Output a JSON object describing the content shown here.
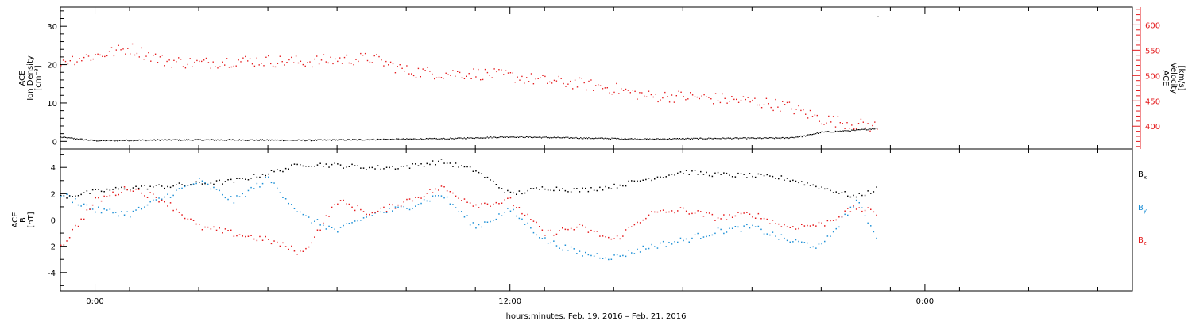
{
  "x_axis_label": "hours:minutes, Feb. 19, 2016 – Feb. 21, 2016",
  "colors": {
    "black": "#000000",
    "red": "#e41a1c",
    "blue": "#1c8fd6"
  },
  "chart_data": [
    {
      "type": "scatter",
      "panel": "top",
      "title": "",
      "xlabel": "hours:minutes, Feb. 19, 2016 – Feb. 21, 2016",
      "xlim": [
        "2016-02-19T23:00",
        "2016-02-21T06:00"
      ],
      "x_ticks": [
        {
          "x": "2016-02-20T00:00",
          "label": "0:00"
        },
        {
          "x": "2016-02-20T12:00",
          "label": "12:00"
        },
        {
          "x": "2016-02-21T00:00",
          "label": "0:00"
        }
      ],
      "left_axis": {
        "label_lines": [
          "ACE",
          "Ion Density",
          "[cm⁻³]"
        ],
        "ylim": [
          -2,
          35
        ],
        "ticks": [
          0,
          10,
          20,
          30
        ]
      },
      "right_axis": {
        "label_lines": [
          "ACE",
          "Velocity",
          "[km/s]"
        ],
        "ylim": [
          355,
          635
        ],
        "ticks": [
          400,
          450,
          500,
          550,
          600
        ]
      },
      "grid": false,
      "series": [
        {
          "name": "",
          "axis": "left",
          "color": "#000000",
          "x": [
            "2016-02-19T23:00",
            "2016-02-20T00:00",
            "2016-02-20T02:00",
            "2016-02-20T04:00",
            "2016-02-20T06:00",
            "2016-02-20T08:00",
            "2016-02-20T10:00",
            "2016-02-20T12:00",
            "2016-02-20T14:00",
            "2016-02-20T16:00",
            "2016-02-20T18:00",
            "2016-02-20T20:00",
            "2016-02-20T20:30",
            "2016-02-20T21:00",
            "2016-02-20T22:00",
            "2016-02-20T22:36",
            "2016-02-20T22:38"
          ],
          "values": [
            1.2,
            0.3,
            0.5,
            0.5,
            0.4,
            0.6,
            0.8,
            1.3,
            1.0,
            0.7,
            0.9,
            1.0,
            1.5,
            2.5,
            3.0,
            3.5,
            32.5
          ]
        },
        {
          "name": "",
          "axis": "right",
          "color": "#e41a1c",
          "x": [
            "2016-02-19T23:00",
            "2016-02-20T00:00",
            "2016-02-20T01:00",
            "2016-02-20T02:00",
            "2016-02-20T03:00",
            "2016-02-20T04:00",
            "2016-02-20T05:00",
            "2016-02-20T06:00",
            "2016-02-20T07:00",
            "2016-02-20T08:00",
            "2016-02-20T09:00",
            "2016-02-20T10:00",
            "2016-02-20T11:00",
            "2016-02-20T12:00",
            "2016-02-20T13:00",
            "2016-02-20T14:00",
            "2016-02-20T15:00",
            "2016-02-20T16:00",
            "2016-02-20T17:00",
            "2016-02-20T18:00",
            "2016-02-20T19:00",
            "2016-02-20T20:00",
            "2016-02-20T21:00",
            "2016-02-20T22:00",
            "2016-02-20T22:36"
          ],
          "values": [
            530,
            540,
            555,
            530,
            525,
            530,
            530,
            528,
            532,
            535,
            510,
            505,
            505,
            500,
            490,
            485,
            475,
            460,
            460,
            455,
            450,
            440,
            415,
            405,
            400
          ]
        }
      ]
    },
    {
      "type": "scatter",
      "panel": "bottom",
      "title": "",
      "xlabel": "hours:minutes, Feb. 19, 2016 – Feb. 21, 2016",
      "xlim": [
        "2016-02-19T23:00",
        "2016-02-21T06:00"
      ],
      "y_axis": {
        "label_lines": [
          "ACE",
          "B",
          "[nT]"
        ],
        "ylim": [
          -5.4,
          5.4
        ],
        "ticks": [
          -4,
          -2,
          0,
          2,
          4
        ]
      },
      "zero_line": true,
      "grid": false,
      "legend_position": "right",
      "series": [
        {
          "name": "B",
          "sub": "x",
          "color": "#000000",
          "x": [
            "2016-02-19T23:00",
            "2016-02-20T00:00",
            "2016-02-20T01:00",
            "2016-02-20T02:00",
            "2016-02-20T03:00",
            "2016-02-20T04:00",
            "2016-02-20T05:00",
            "2016-02-20T06:00",
            "2016-02-20T07:00",
            "2016-02-20T08:00",
            "2016-02-20T09:00",
            "2016-02-20T10:00",
            "2016-02-20T11:00",
            "2016-02-20T12:00",
            "2016-02-20T13:00",
            "2016-02-20T14:00",
            "2016-02-20T15:00",
            "2016-02-20T16:00",
            "2016-02-20T17:00",
            "2016-02-20T18:00",
            "2016-02-20T19:00",
            "2016-02-20T20:00",
            "2016-02-20T21:00",
            "2016-02-20T22:00",
            "2016-02-20T22:36"
          ],
          "values": [
            1.8,
            2.2,
            2.5,
            2.6,
            2.8,
            3.0,
            3.6,
            4.3,
            4.2,
            4.0,
            4.1,
            4.5,
            3.8,
            2.0,
            2.5,
            2.3,
            2.6,
            3.2,
            3.7,
            3.5,
            3.4,
            3.2,
            2.5,
            1.8,
            2.4
          ]
        },
        {
          "name": "B",
          "sub": "y",
          "color": "#1c8fd6",
          "x": [
            "2016-02-19T23:00",
            "2016-02-20T00:00",
            "2016-02-20T01:00",
            "2016-02-20T02:00",
            "2016-02-20T03:00",
            "2016-02-20T04:00",
            "2016-02-20T05:00",
            "2016-02-20T06:00",
            "2016-02-20T07:00",
            "2016-02-20T08:00",
            "2016-02-20T09:00",
            "2016-02-20T10:00",
            "2016-02-20T11:00",
            "2016-02-20T12:00",
            "2016-02-20T13:00",
            "2016-02-20T14:00",
            "2016-02-20T15:00",
            "2016-02-20T16:00",
            "2016-02-20T17:00",
            "2016-02-20T18:00",
            "2016-02-20T19:00",
            "2016-02-20T20:00",
            "2016-02-20T21:00",
            "2016-02-20T22:00",
            "2016-02-20T22:36"
          ],
          "values": [
            2.0,
            0.8,
            0.5,
            1.8,
            3.0,
            1.5,
            3.2,
            0.3,
            -0.8,
            0.5,
            1.0,
            2.0,
            -0.5,
            0.8,
            -1.5,
            -2.5,
            -2.8,
            -2.0,
            -1.5,
            -0.8,
            -0.5,
            -1.5,
            -2.0,
            1.5,
            -1.2
          ]
        },
        {
          "name": "B",
          "sub": "z",
          "color": "#e41a1c",
          "x": [
            "2016-02-19T23:00",
            "2016-02-20T00:00",
            "2016-02-20T01:00",
            "2016-02-20T02:00",
            "2016-02-20T03:00",
            "2016-02-20T04:00",
            "2016-02-20T05:00",
            "2016-02-20T06:00",
            "2016-02-20T07:00",
            "2016-02-20T08:00",
            "2016-02-20T09:00",
            "2016-02-20T10:00",
            "2016-02-20T11:00",
            "2016-02-20T12:00",
            "2016-02-20T13:00",
            "2016-02-20T14:00",
            "2016-02-20T15:00",
            "2016-02-20T16:00",
            "2016-02-20T17:00",
            "2016-02-20T18:00",
            "2016-02-20T19:00",
            "2016-02-20T20:00",
            "2016-02-20T21:00",
            "2016-02-20T22:00",
            "2016-02-20T22:36"
          ],
          "values": [
            -2.0,
            1.5,
            2.5,
            1.5,
            -0.5,
            -1.0,
            -1.5,
            -2.5,
            1.5,
            0.5,
            1.5,
            2.5,
            1.2,
            1.5,
            -1.0,
            -0.5,
            -1.5,
            0.5,
            0.8,
            0.2,
            0.5,
            -0.5,
            -0.3,
            1.0,
            0.5
          ]
        }
      ]
    }
  ]
}
